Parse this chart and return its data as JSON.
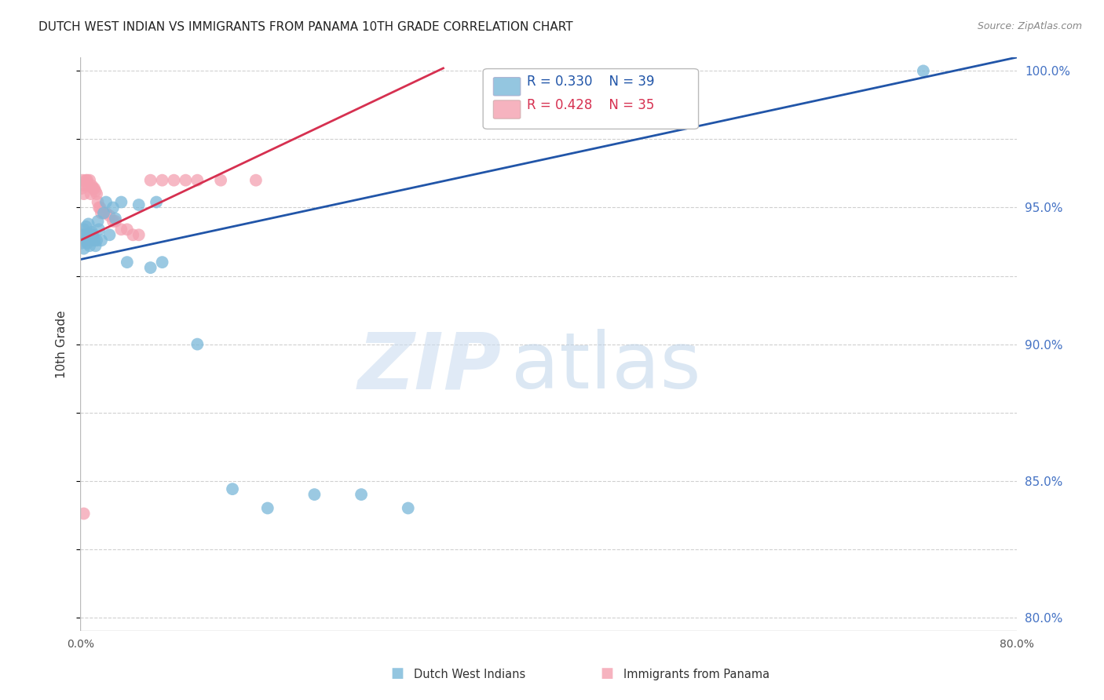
{
  "title": "DUTCH WEST INDIAN VS IMMIGRANTS FROM PANAMA 10TH GRADE CORRELATION CHART",
  "source": "Source: ZipAtlas.com",
  "ylabel": "10th Grade",
  "xlim": [
    0.0,
    0.8
  ],
  "ylim": [
    0.795,
    1.005
  ],
  "x_ticks": [
    0.0,
    0.1,
    0.2,
    0.3,
    0.4,
    0.5,
    0.6,
    0.7,
    0.8
  ],
  "x_tick_labels": [
    "0.0%",
    "",
    "",
    "",
    "",
    "",
    "",
    "",
    "80.0%"
  ],
  "y_ticks_right": [
    1.0,
    0.95,
    0.9,
    0.85,
    0.8
  ],
  "y_tick_labels_right": [
    "100.0%",
    "95.0%",
    "90.0%",
    "85.0%",
    "80.0%"
  ],
  "legend_r1": "R = 0.330",
  "legend_n1": "N = 39",
  "legend_r2": "R = 0.428",
  "legend_n2": "N = 35",
  "blue_color": "#7ab8d9",
  "pink_color": "#f4a0b0",
  "blue_line_color": "#2155a8",
  "pink_line_color": "#d63050",
  "watermark_zip": "ZIP",
  "watermark_atlas": "atlas",
  "grid_color": "#d0d0d0",
  "background_color": "#ffffff",
  "title_fontsize": 11,
  "axis_label_color": "#333333",
  "right_axis_color": "#4472c4",
  "blue_x": [
    0.001,
    0.002,
    0.003,
    0.003,
    0.004,
    0.005,
    0.005,
    0.006,
    0.007,
    0.007,
    0.008,
    0.009,
    0.01,
    0.01,
    0.011,
    0.012,
    0.013,
    0.014,
    0.015,
    0.016,
    0.018,
    0.02,
    0.022,
    0.025,
    0.028,
    0.03,
    0.035,
    0.04,
    0.05,
    0.06,
    0.065,
    0.07,
    0.1,
    0.13,
    0.16,
    0.2,
    0.24,
    0.28,
    0.72
  ],
  "blue_y": [
    0.937,
    0.94,
    0.935,
    0.942,
    0.94,
    0.938,
    0.943,
    0.937,
    0.94,
    0.944,
    0.936,
    0.939,
    0.941,
    0.94,
    0.94,
    0.938,
    0.936,
    0.938,
    0.945,
    0.942,
    0.938,
    0.948,
    0.952,
    0.94,
    0.95,
    0.946,
    0.952,
    0.93,
    0.951,
    0.928,
    0.952,
    0.93,
    0.9,
    0.847,
    0.84,
    0.845,
    0.845,
    0.84,
    1.0
  ],
  "pink_x": [
    0.001,
    0.002,
    0.003,
    0.004,
    0.005,
    0.006,
    0.007,
    0.008,
    0.009,
    0.01,
    0.011,
    0.012,
    0.013,
    0.014,
    0.015,
    0.016,
    0.017,
    0.018,
    0.02,
    0.022,
    0.025,
    0.028,
    0.03,
    0.035,
    0.04,
    0.045,
    0.05,
    0.06,
    0.07,
    0.08,
    0.09,
    0.1,
    0.12,
    0.15,
    0.003
  ],
  "pink_y": [
    0.957,
    0.96,
    0.955,
    0.958,
    0.96,
    0.96,
    0.958,
    0.96,
    0.955,
    0.958,
    0.957,
    0.957,
    0.956,
    0.955,
    0.952,
    0.95,
    0.95,
    0.948,
    0.948,
    0.948,
    0.947,
    0.945,
    0.945,
    0.942,
    0.942,
    0.94,
    0.94,
    0.96,
    0.96,
    0.96,
    0.96,
    0.96,
    0.96,
    0.96,
    0.838
  ],
  "blue_trendline_x": [
    0.0,
    0.8
  ],
  "blue_trendline_y": [
    0.931,
    1.005
  ],
  "pink_trendline_x": [
    0.0,
    0.31
  ],
  "pink_trendline_y": [
    0.938,
    1.001
  ]
}
